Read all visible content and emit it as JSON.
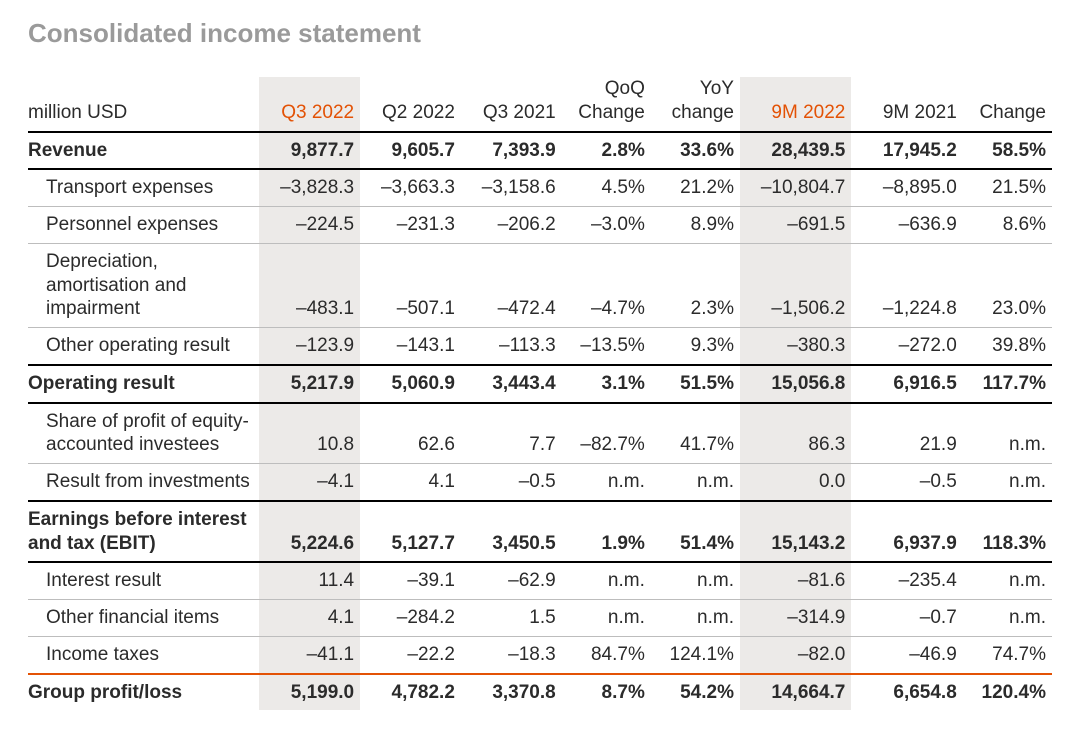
{
  "colors": {
    "text": "#2b2b2b",
    "muted": "#9a9a9a",
    "accent": "#e35205",
    "band": "#eceae8",
    "rule_heavy": "#000000",
    "rule_thin": "#bdbdbd",
    "rule_accent": "#e35205",
    "background": "#ffffff"
  },
  "typography": {
    "family": "Helvetica Neue",
    "title_size_pt": 20,
    "body_size_pt": 14
  },
  "title": "Consolidated income statement",
  "unit_label": "million USD",
  "columns": [
    {
      "key": "q3_2022",
      "label": "Q3 2022",
      "accent": true,
      "band": true
    },
    {
      "key": "q2_2022",
      "label": "Q2 2022"
    },
    {
      "key": "q3_2021",
      "label": "Q3 2021"
    },
    {
      "key": "qoq",
      "label": "QoQ\nChange"
    },
    {
      "key": "yoy",
      "label": "YoY\nchange"
    },
    {
      "key": "m9_2022",
      "label": "9M 2022",
      "accent": true,
      "band": true
    },
    {
      "key": "m9_2021",
      "label": "9M 2021"
    },
    {
      "key": "chg",
      "label": "Change"
    }
  ],
  "rows": [
    {
      "label": "Revenue",
      "style": "first major",
      "indent": 0,
      "q3_2022": "9,877.7",
      "q2_2022": "9,605.7",
      "q3_2021": "7,393.9",
      "qoq": "2.8%",
      "yoy": "33.6%",
      "m9_2022": "28,439.5",
      "m9_2021": "17,945.2",
      "chg": "58.5%"
    },
    {
      "label": "Transport expenses",
      "style": "sub",
      "indent": 1,
      "q3_2022": "–3,828.3",
      "q2_2022": "–3,663.3",
      "q3_2021": "–3,158.6",
      "qoq": "4.5%",
      "yoy": "21.2%",
      "m9_2022": "–10,804.7",
      "m9_2021": "–8,895.0",
      "chg": "21.5%"
    },
    {
      "label": "Personnel expenses",
      "style": "sub",
      "indent": 1,
      "q3_2022": "–224.5",
      "q2_2022": "–231.3",
      "q3_2021": "–206.2",
      "qoq": "–3.0%",
      "yoy": "8.9%",
      "m9_2022": "–691.5",
      "m9_2021": "–636.9",
      "chg": "8.6%"
    },
    {
      "label": "Depreciation, amortisation and impairment",
      "style": "sub",
      "indent": 1,
      "q3_2022": "–483.1",
      "q2_2022": "–507.1",
      "q3_2021": "–472.4",
      "qoq": "–4.7%",
      "yoy": "2.3%",
      "m9_2022": "–1,506.2",
      "m9_2021": "–1,224.8",
      "chg": "23.0%"
    },
    {
      "label": "Other operating result",
      "style": "major sub-last",
      "indent": 1,
      "q3_2022": "–123.9",
      "q2_2022": "–143.1",
      "q3_2021": "–113.3",
      "qoq": "–13.5%",
      "yoy": "9.3%",
      "m9_2022": "–380.3",
      "m9_2021": "–272.0",
      "chg": "39.8%"
    },
    {
      "label": "Operating result",
      "style": "major",
      "indent": 0,
      "q3_2022": "5,217.9",
      "q2_2022": "5,060.9",
      "q3_2021": "3,443.4",
      "qoq": "3.1%",
      "yoy": "51.5%",
      "m9_2022": "15,056.8",
      "m9_2021": "6,916.5",
      "chg": "117.7%"
    },
    {
      "label": "Share of profit of equity-accounted investees",
      "style": "sub",
      "indent": 1,
      "q3_2022": "10.8",
      "q2_2022": "62.6",
      "q3_2021": "7.7",
      "qoq": "–82.7%",
      "yoy": "41.7%",
      "m9_2022": "86.3",
      "m9_2021": "21.9",
      "chg": "n.m."
    },
    {
      "label": "Result from investments",
      "style": "major sub-last",
      "indent": 1,
      "q3_2022": "–4.1",
      "q2_2022": "4.1",
      "q3_2021": "–0.5",
      "qoq": "n.m.",
      "yoy": "n.m.",
      "m9_2022": "0.0",
      "m9_2021": "–0.5",
      "chg": "n.m."
    },
    {
      "label": "Earnings before interest and tax (EBIT)",
      "style": "major",
      "indent": 0,
      "q3_2022": "5,224.6",
      "q2_2022": "5,127.7",
      "q3_2021": "3,450.5",
      "qoq": "1.9%",
      "yoy": "51.4%",
      "m9_2022": "15,143.2",
      "m9_2021": "6,937.9",
      "chg": "118.3%"
    },
    {
      "label": "Interest result",
      "style": "sub",
      "indent": 1,
      "q3_2022": "11.4",
      "q2_2022": "–39.1",
      "q3_2021": "–62.9",
      "qoq": "n.m.",
      "yoy": "n.m.",
      "m9_2022": "–81.6",
      "m9_2021": "–235.4",
      "chg": "n.m."
    },
    {
      "label": "Other financial items",
      "style": "sub",
      "indent": 1,
      "q3_2022": "4.1",
      "q2_2022": "–284.2",
      "q3_2021": "1.5",
      "qoq": "n.m.",
      "yoy": "n.m.",
      "m9_2022": "–314.9",
      "m9_2021": "–0.7",
      "chg": "n.m."
    },
    {
      "label": "Income taxes",
      "style": "sub",
      "indent": 1,
      "q3_2022": "–41.1",
      "q2_2022": "–22.2",
      "q3_2021": "–18.3",
      "qoq": "84.7%",
      "yoy": "124.1%",
      "m9_2022": "–82.0",
      "m9_2021": "–46.9",
      "chg": "74.7%"
    },
    {
      "label": "Group profit/loss",
      "style": "final",
      "indent": 0,
      "q3_2022": "5,199.0",
      "q2_2022": "4,782.2",
      "q3_2021": "3,370.8",
      "qoq": "8.7%",
      "yoy": "54.2%",
      "m9_2022": "14,664.7",
      "m9_2021": "6,654.8",
      "chg": "120.4%"
    }
  ]
}
